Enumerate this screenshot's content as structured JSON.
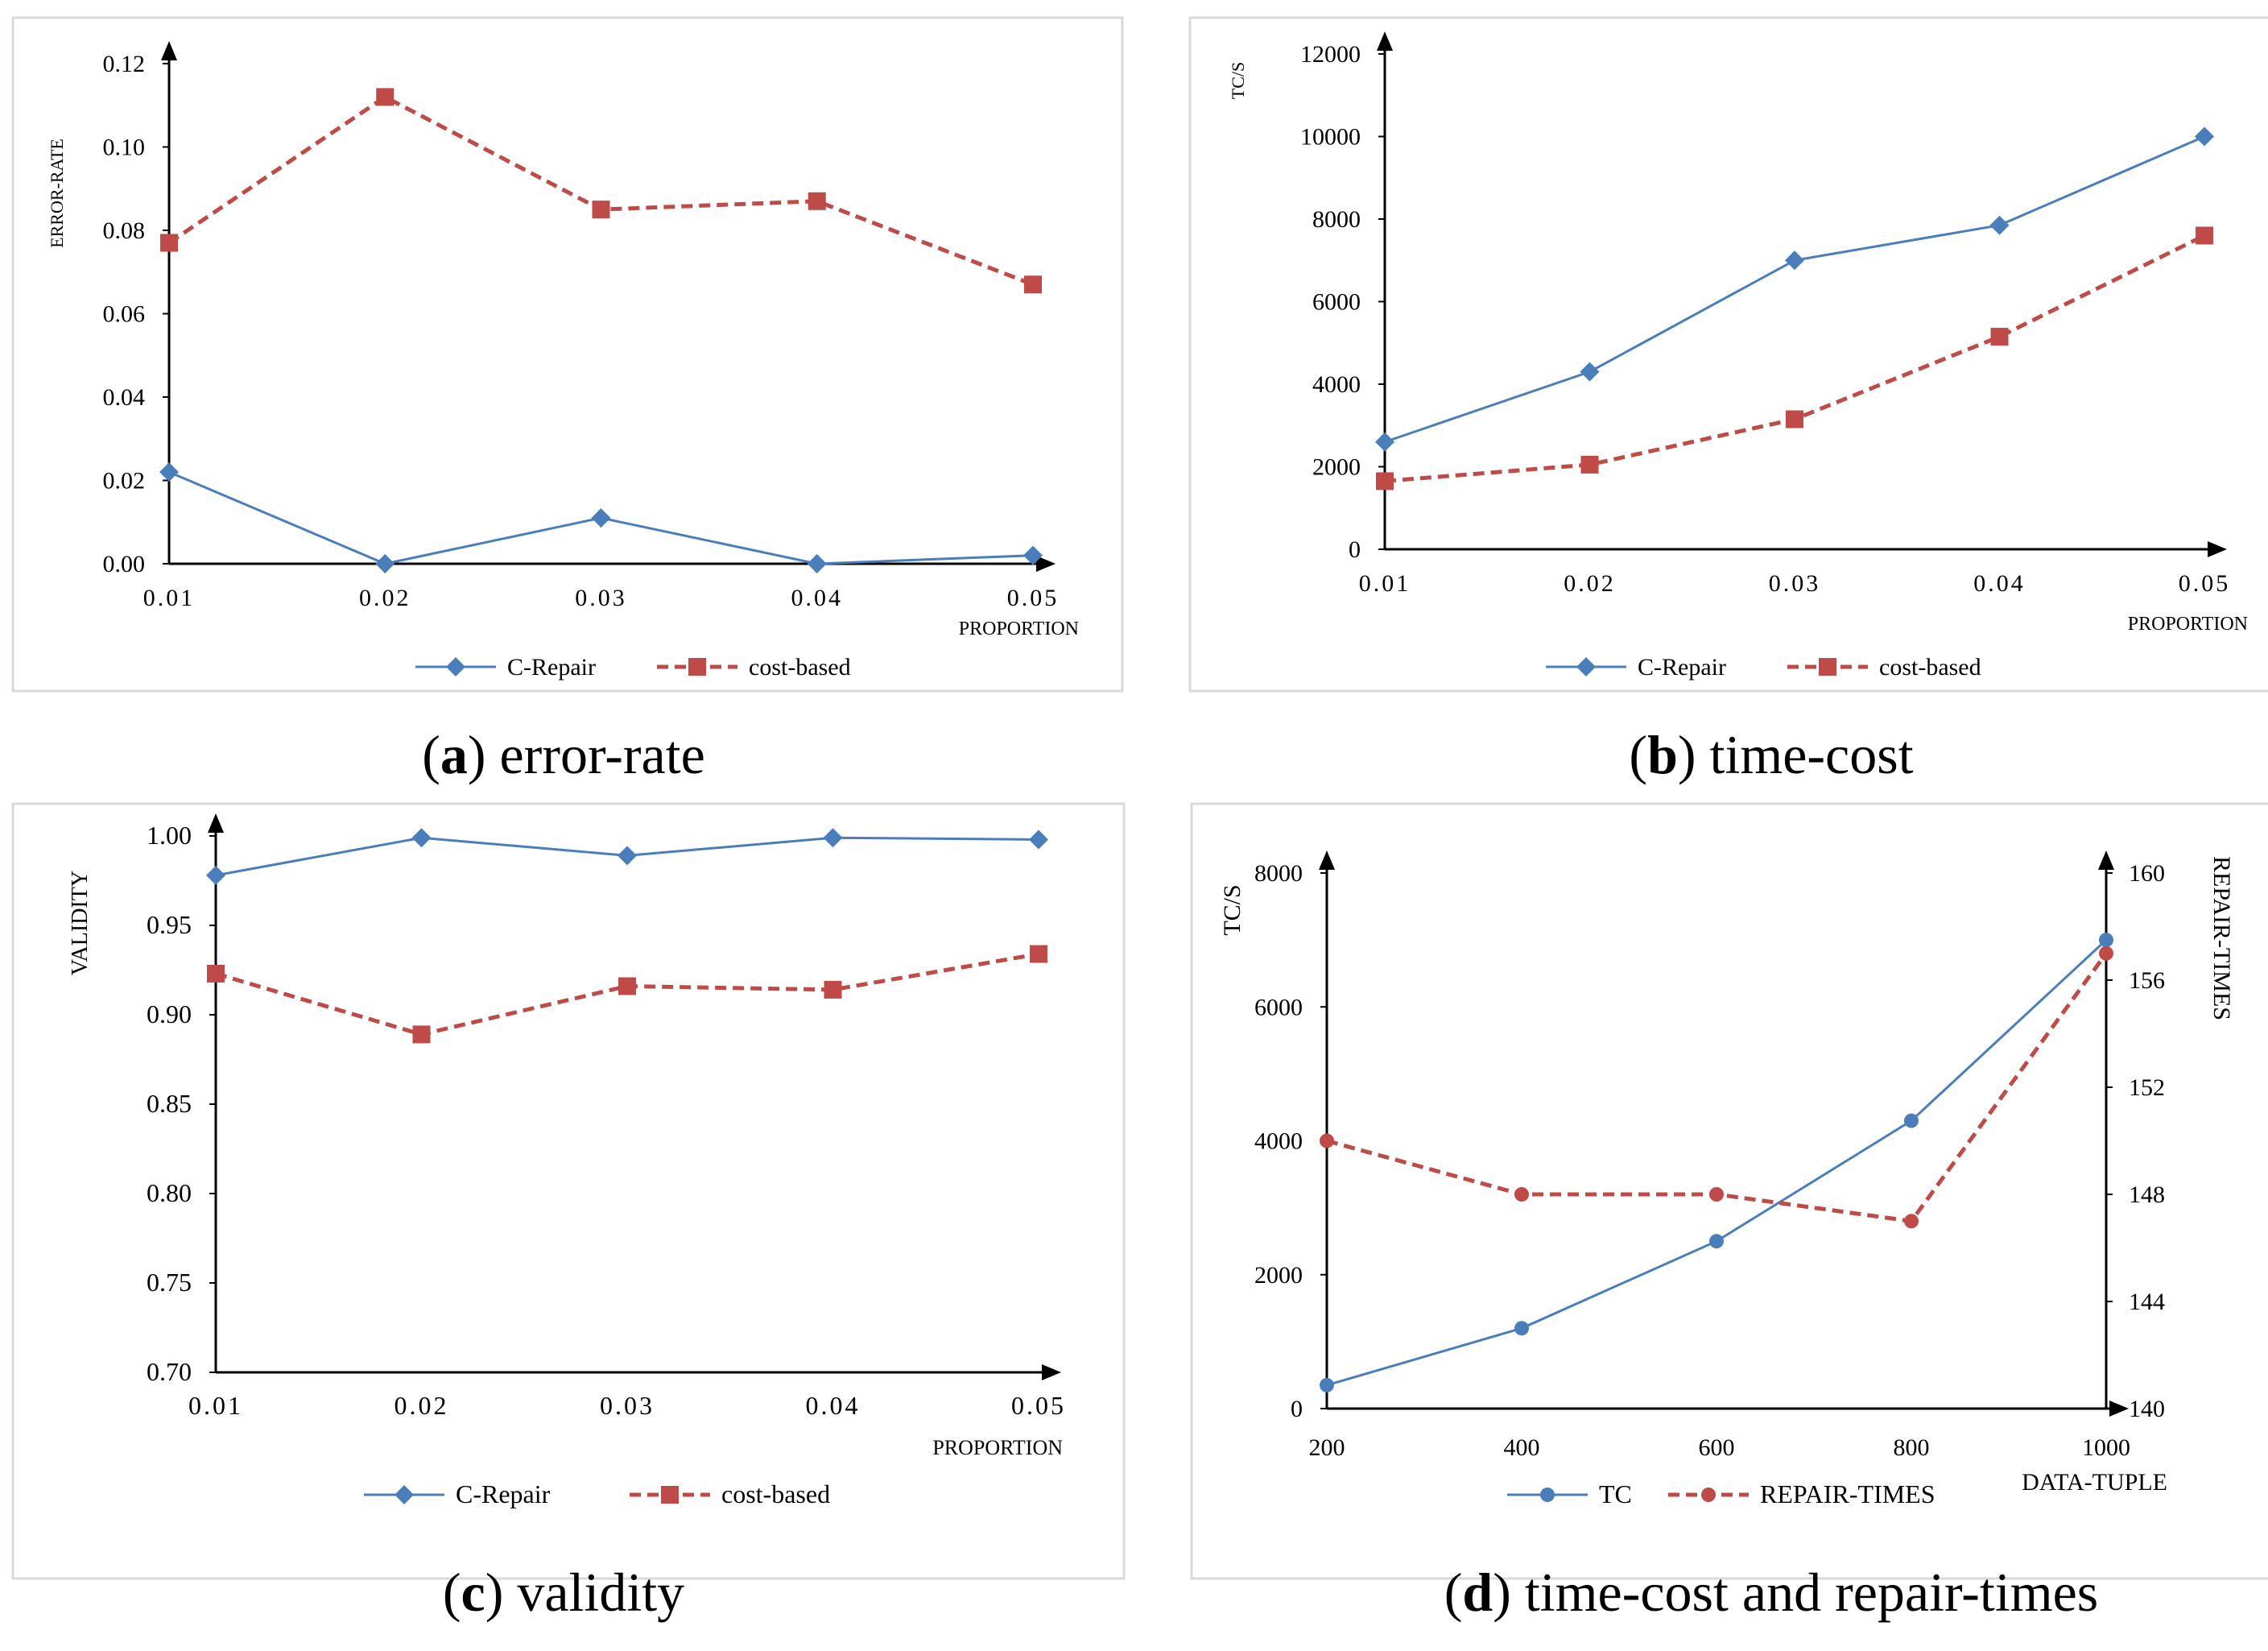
{
  "colors": {
    "c_repair": "#4a7ebb",
    "cost_based": "#be4b48",
    "axis": "#000000",
    "frame": "#d9d9d9",
    "text": "#000000"
  },
  "chart_data": [
    {
      "type": "line",
      "caption_letter": "a",
      "caption_text": " error-rate",
      "ylabel": "ERROR-RATE",
      "xlabel": "PROPORTION",
      "categories": [
        "0.01",
        "0.02",
        "0.03",
        "0.04",
        "0.05"
      ],
      "ylim": [
        0,
        0.12
      ],
      "yticks": [
        "0.00",
        "0.02",
        "0.04",
        "0.06",
        "0.08",
        "0.10",
        "0.12"
      ],
      "series": [
        {
          "name": "C-Repair",
          "style": "blue",
          "marker": "diamond",
          "values": [
            0.022,
            0.0,
            0.011,
            0.0,
            0.002
          ]
        },
        {
          "name": "cost-based",
          "style": "red",
          "marker": "square",
          "values": [
            0.077,
            0.112,
            0.085,
            0.087,
            0.067
          ]
        }
      ]
    },
    {
      "type": "line",
      "caption_letter": "b",
      "caption_text": " time-cost",
      "ylabel": "TC/S",
      "xlabel": "PROPORTION",
      "categories": [
        "0.01",
        "0.02",
        "0.03",
        "0.04",
        "0.05"
      ],
      "ylim": [
        0,
        12000
      ],
      "yticks": [
        "0",
        "2000",
        "4000",
        "6000",
        "8000",
        "10000",
        "12000"
      ],
      "series": [
        {
          "name": "C-Repair",
          "style": "blue",
          "marker": "diamond",
          "values": [
            2600,
            4300,
            7000,
            7850,
            10000
          ]
        },
        {
          "name": "cost-based",
          "style": "red",
          "marker": "square",
          "values": [
            1650,
            2050,
            3150,
            5150,
            7600
          ]
        }
      ]
    },
    {
      "type": "line",
      "caption_letter": "c",
      "caption_text": " validity",
      "ylabel": "VALIDITY",
      "xlabel": "PROPORTION",
      "categories": [
        "0.01",
        "0.02",
        "0.03",
        "0.04",
        "0.05"
      ],
      "ylim": [
        0.7,
        1.0
      ],
      "yticks": [
        "0.70",
        "0.75",
        "0.80",
        "0.85",
        "0.90",
        "0.95",
        "1.00"
      ],
      "series": [
        {
          "name": "C-Repair",
          "style": "blue",
          "marker": "diamond",
          "values": [
            0.978,
            0.999,
            0.989,
            0.999,
            0.998
          ]
        },
        {
          "name": "cost-based",
          "style": "red",
          "marker": "square",
          "values": [
            0.923,
            0.889,
            0.916,
            0.914,
            0.934
          ]
        }
      ]
    },
    {
      "type": "line",
      "caption_letter": "d",
      "caption_text": " time-cost and repair-times",
      "ylabel": "TC/S",
      "y2label": "REPAIR-TIMES",
      "xlabel": "DATA-TUPLE",
      "categories": [
        "200",
        "400",
        "600",
        "800",
        "1000"
      ],
      "ylim": [
        0,
        8000
      ],
      "yticks": [
        "0",
        "2000",
        "4000",
        "6000",
        "8000"
      ],
      "y2lim": [
        140,
        160
      ],
      "y2ticks": [
        "140",
        "144",
        "148",
        "152",
        "156",
        "160"
      ],
      "series": [
        {
          "name": "TC",
          "style": "blue",
          "marker": "circle",
          "axis": "left",
          "values": [
            350,
            1200,
            2500,
            4300,
            7000
          ]
        },
        {
          "name": "REPAIR-TIMES",
          "style": "red",
          "marker": "circle",
          "axis": "right",
          "values": [
            150,
            148,
            148,
            147,
            157
          ]
        }
      ]
    }
  ]
}
